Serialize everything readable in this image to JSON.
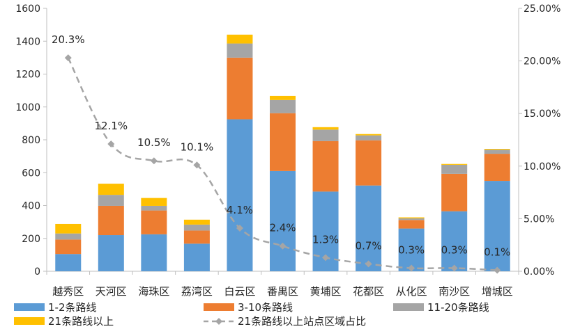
{
  "chart_data": {
    "type": "bar",
    "stacked": true,
    "categories": [
      "越秀区",
      "天河区",
      "海珠区",
      "荔湾区",
      "白云区",
      "番禺区",
      "黄埔区",
      "花都区",
      "从化区",
      "南沙区",
      "增城区"
    ],
    "series": [
      {
        "name": "1-2条路线",
        "color": "#5b9bd5",
        "values": [
          105,
          220,
          225,
          168,
          925,
          610,
          485,
          522,
          260,
          365,
          550
        ]
      },
      {
        "name": "3-10条路线",
        "color": "#ed7d31",
        "values": [
          88,
          178,
          145,
          80,
          375,
          352,
          307,
          275,
          52,
          228,
          165
        ]
      },
      {
        "name": "11-20条路线",
        "color": "#a5a5a5",
        "values": [
          37,
          67,
          28,
          36,
          86,
          80,
          70,
          30,
          10,
          55,
          25
        ]
      },
      {
        "name": "21条路线以上",
        "color": "#ffc000",
        "values": [
          58,
          68,
          48,
          30,
          54,
          25,
          15,
          8,
          6,
          5,
          5
        ]
      }
    ],
    "line_series": {
      "name": "21条路线以上站点区域占比",
      "color": "#a5a5a5",
      "axis": "right",
      "values": [
        20.3,
        12.1,
        10.5,
        10.1,
        4.1,
        2.4,
        1.3,
        0.7,
        0.3,
        0.3,
        0.1
      ],
      "labels": [
        "20.3%",
        "12.1%",
        "10.5%",
        "10.1%",
        "4.1%",
        "2.4%",
        "1.3%",
        "0.7%",
        "0.3%",
        "0.3%",
        "0.1%"
      ]
    },
    "y_left": {
      "min": 0,
      "max": 1600,
      "step": 200,
      "ticks": [
        "0",
        "200",
        "400",
        "600",
        "800",
        "1000",
        "1200",
        "1400",
        "1600"
      ]
    },
    "y_right": {
      "min": 0,
      "max": 25,
      "ticks": [
        "0.00%",
        "5.00%",
        "10.00%",
        "15.00%",
        "20.00%",
        "25.00%"
      ]
    },
    "legend_position": "bottom",
    "grid": false
  }
}
